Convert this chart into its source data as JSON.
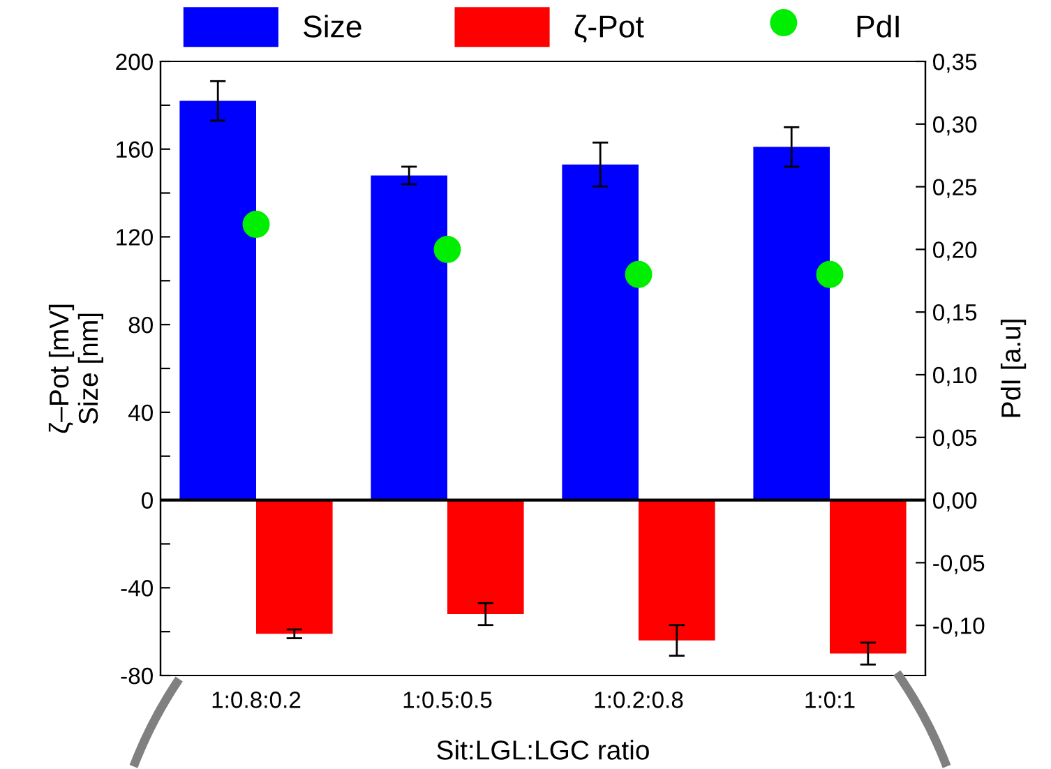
{
  "chart_data": {
    "type": "bar",
    "xlabel": "Sit:LGL:LGC ratio",
    "ylabel": "ζ–Pot [mV]\nSize [nm]",
    "y2label": "PdI [a.u]",
    "categories": [
      "1:0.8:0.2",
      "1:0.5:0.5",
      "1:0.2:0.8",
      "1:0:1"
    ],
    "series": [
      {
        "name": "Size",
        "color": "#0000ff",
        "values": [
          182,
          148,
          153,
          161
        ],
        "errors": [
          9,
          4,
          10,
          9
        ]
      },
      {
        "name": "ζ-Pot",
        "color": "#ff0000",
        "values": [
          -61,
          -52,
          -64,
          -70
        ],
        "errors": [
          2,
          5,
          7,
          5
        ]
      },
      {
        "name": "PdI",
        "color": "#00ee00",
        "type": "scatter",
        "axis": "y2",
        "values": [
          0.22,
          0.2,
          0.18,
          0.18
        ]
      }
    ],
    "ylim": [
      -80,
      200
    ],
    "yticks": [
      -80,
      {
        "value": -60,
        "label": null
      },
      -40,
      {
        "value": -20,
        "label": null
      },
      0,
      {
        "value": 20,
        "label": null
      },
      40,
      {
        "value": 60,
        "label": null
      },
      80,
      {
        "value": 100,
        "label": null
      },
      120,
      {
        "value": 140,
        "label": null
      },
      160,
      {
        "value": 180,
        "label": null
      },
      200
    ],
    "y2lim": [
      -0.14,
      0.35
    ],
    "y2ticks": [
      {
        "value": -0.1,
        "label": "-0,10"
      },
      {
        "value": -0.05,
        "label": "-0,05"
      },
      {
        "value": 0,
        "label": "0,00"
      },
      {
        "value": 0.05,
        "label": "0,05"
      },
      {
        "value": 0.1,
        "label": "0,10"
      },
      {
        "value": 0.15,
        "label": "0,15"
      },
      {
        "value": 0.2,
        "label": "0,20"
      },
      {
        "value": 0.25,
        "label": "0,25"
      },
      {
        "value": 0.3,
        "label": "0,30"
      },
      {
        "value": 0.35,
        "label": "0,35"
      }
    ],
    "ref_lines": [
      {
        "axis": "y",
        "value": 0,
        "color": "#000000"
      }
    ],
    "legend": "top",
    "grid": false,
    "marker": "circle"
  }
}
